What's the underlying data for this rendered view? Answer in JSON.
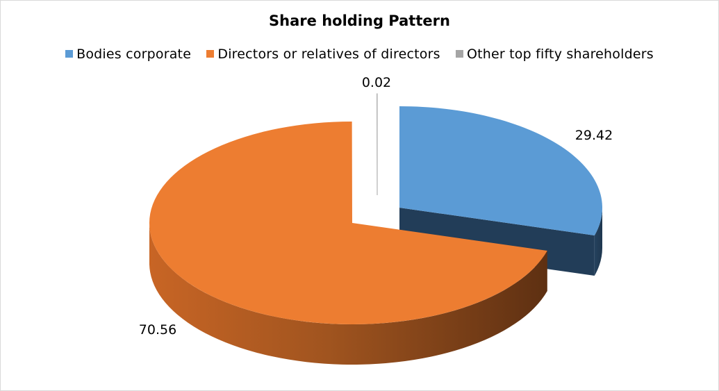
{
  "chart_data": {
    "type": "pie",
    "title": "Share holding Pattern",
    "legend_position": "top",
    "three_d": true,
    "exploded": true,
    "slices": [
      {
        "name": "Bodies corporate",
        "value": 29.42,
        "label": "29.42",
        "color": "#5b9bd5",
        "side_color": "#223d58"
      },
      {
        "name": "Directors or relatives of directors",
        "value": 70.56,
        "label": "70.56",
        "color": "#ed7d31",
        "side_color": "#8a4a1f"
      },
      {
        "name": "Other top fifty shareholders",
        "value": 0.02,
        "label": "0.02",
        "color": "#a5a5a5",
        "side_color": "#6f6f6f"
      }
    ]
  }
}
